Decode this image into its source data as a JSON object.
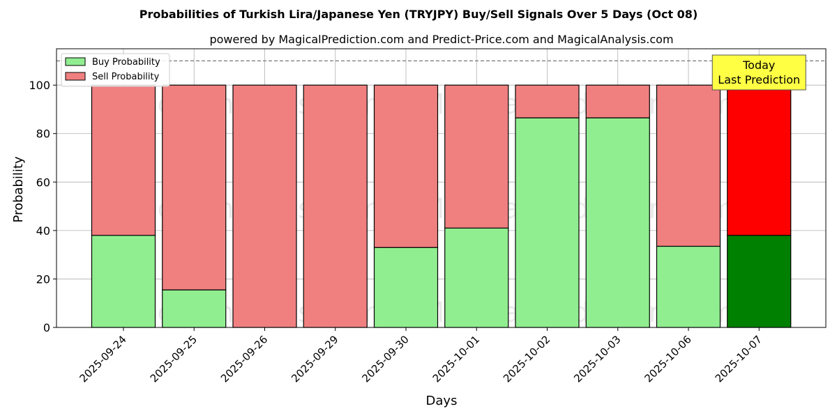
{
  "chart_data": {
    "type": "bar",
    "stacked": true,
    "title": "Probabilities of Turkish Lira/Japanese Yen (TRYJPY) Buy/Sell Signals Over 5 Days (Oct 08)",
    "subtitle": "powered by MagicalPrediction.com and Predict-Price.com and MagicalAnalysis.com",
    "xlabel": "Days",
    "ylabel": "Probability",
    "ylim": [
      0,
      115
    ],
    "yticks": [
      0,
      20,
      40,
      60,
      80,
      100
    ],
    "grid": true,
    "legend_position": "top-left",
    "reference_line": 110,
    "categories": [
      "2025-09-24",
      "2025-09-25",
      "2025-09-26",
      "2025-09-29",
      "2025-09-30",
      "2025-10-01",
      "2025-10-02",
      "2025-10-03",
      "2025-10-06",
      "2025-10-07"
    ],
    "series": [
      {
        "name": "Buy Probability",
        "color": "#90ee90",
        "values": [
          38,
          15.5,
          0,
          0,
          33,
          41,
          86.5,
          86.5,
          33.5,
          38
        ]
      },
      {
        "name": "Sell Probability",
        "color": "#f08080",
        "values": [
          62,
          84.5,
          100,
          100,
          67,
          59,
          13.5,
          13.5,
          66.5,
          62
        ]
      }
    ],
    "highlight": {
      "index": 9,
      "buy_color": "#008000",
      "sell_color": "#ff0000",
      "annotation": [
        "Today",
        "Last Prediction"
      ],
      "annotation_color": "#ffff44"
    },
    "watermarks": [
      "MagicalAnalysis.com",
      "MagicalPrediction.com"
    ]
  }
}
